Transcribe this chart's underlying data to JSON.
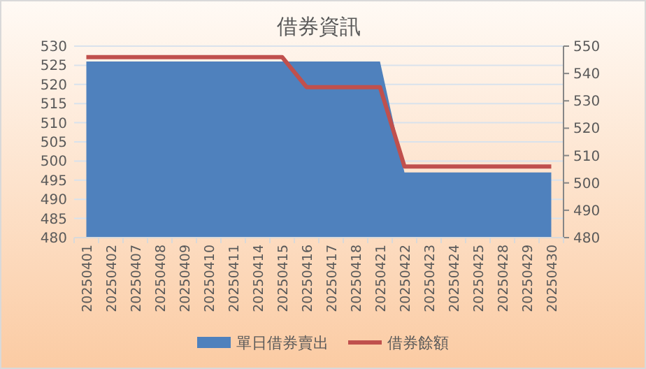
{
  "chart_data": {
    "type": "area",
    "title": "借券資訊",
    "categories": [
      "20250401",
      "20250402",
      "20250407",
      "20250408",
      "20250409",
      "20250410",
      "20250411",
      "20250414",
      "20250415",
      "20250416",
      "20250417",
      "20250418",
      "20250421",
      "20250422",
      "20250423",
      "20250424",
      "20250425",
      "20250428",
      "20250429",
      "20250430"
    ],
    "series": [
      {
        "name": "單日借券賣出",
        "color": "#4f81bd",
        "values": [
          526,
          526,
          526,
          526,
          526,
          526,
          526,
          526,
          526,
          526,
          526,
          526,
          526,
          497,
          497,
          497,
          497,
          497,
          497,
          497
        ]
      },
      {
        "name": "借券餘額",
        "type": "line",
        "axis": "y2",
        "color": "#c0504d",
        "values": [
          546,
          546,
          546,
          546,
          546,
          546,
          546,
          546,
          546,
          535,
          535,
          535,
          535,
          506,
          506,
          506,
          506,
          506,
          506,
          506
        ]
      }
    ],
    "ylim": [
      480,
      530
    ],
    "yticks": [
      480,
      485,
      490,
      495,
      500,
      505,
      510,
      515,
      520,
      525,
      530
    ],
    "y2lim": [
      480,
      550
    ],
    "y2ticks": [
      480,
      490,
      500,
      510,
      520,
      530,
      540,
      550
    ],
    "grid": "y",
    "legend": "bottom"
  }
}
